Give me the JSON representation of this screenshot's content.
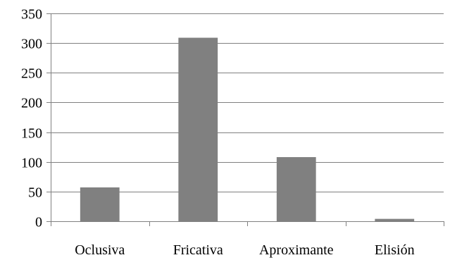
{
  "chart_data": {
    "type": "bar",
    "title": "",
    "xlabel": "",
    "ylabel": "",
    "categories": [
      "Oclusiva",
      "Fricativa",
      "Aproximante",
      "Elisión"
    ],
    "values": [
      57,
      309,
      108,
      4
    ],
    "ylim": [
      0,
      350
    ],
    "yticks": [
      0,
      50,
      100,
      150,
      200,
      250,
      300,
      350
    ],
    "grid": true,
    "legend": "none",
    "bar_color": "#808080",
    "grid_color": "#808080",
    "axis_color": "#808080"
  }
}
